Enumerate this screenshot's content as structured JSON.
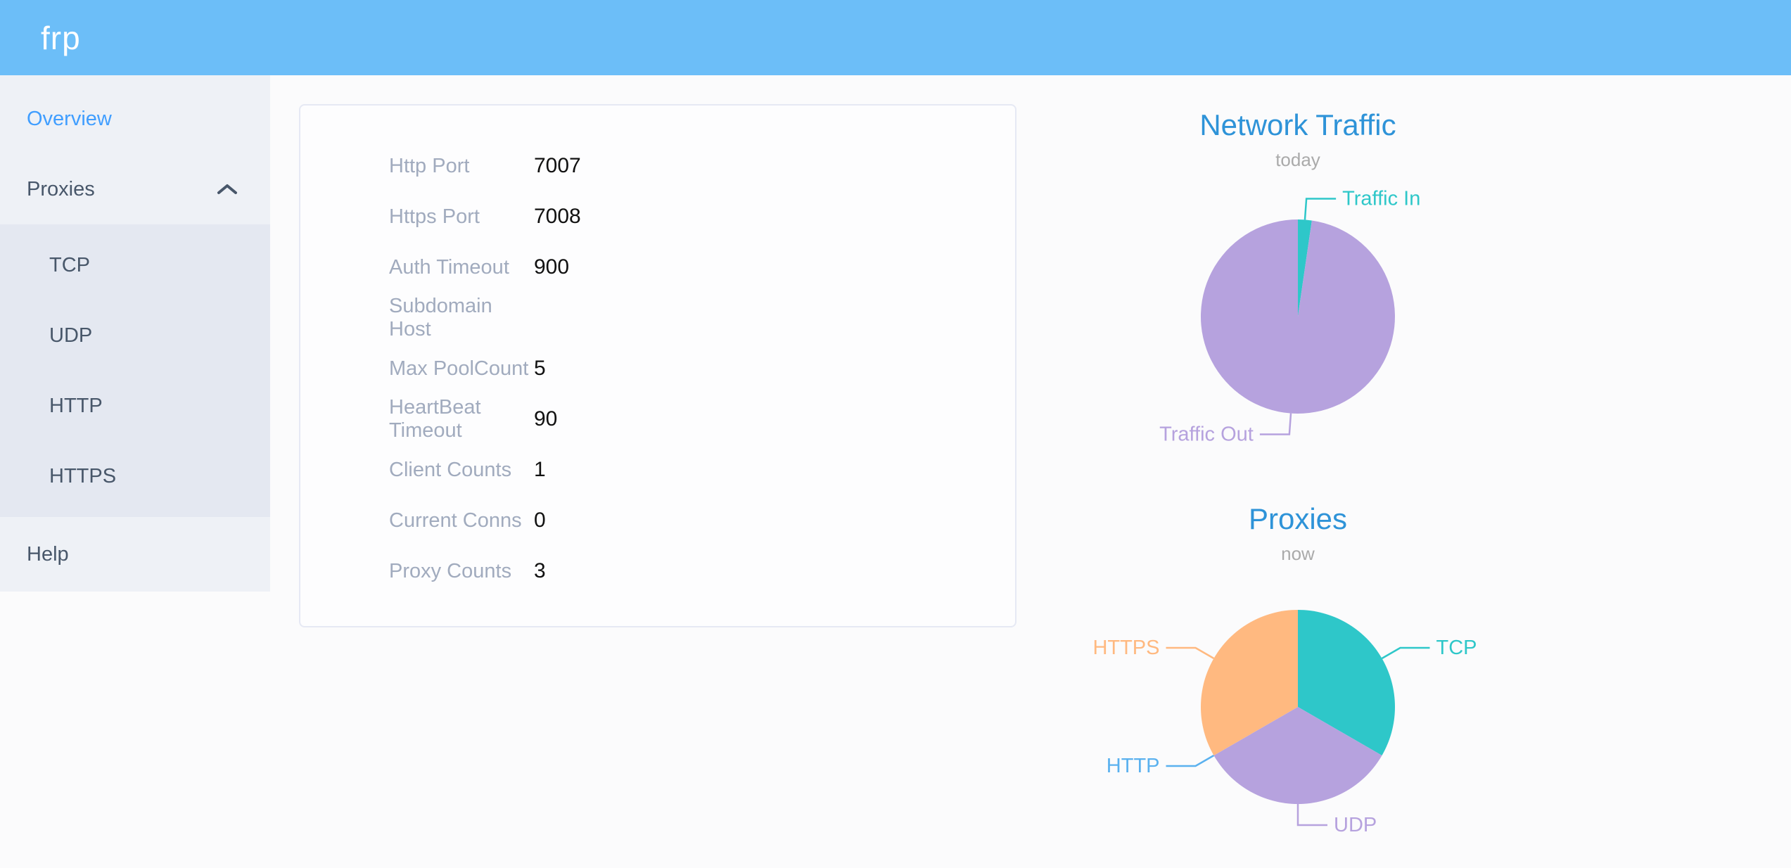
{
  "header": {
    "logo": "frp"
  },
  "theme": {
    "header_bg": "#6cbef8",
    "page_bg": "#fbfbfc",
    "sidebar_bg": "#eef1f6",
    "submenu_bg": "#e4e8f1",
    "menu_text": "#48576a",
    "active_menu": "#409eff",
    "label_text": "#a1abbe",
    "value_text": "#111111",
    "card_border": "#e6e9f4",
    "chart_title": "#2e93d8",
    "subtitle": "#aaaaaa"
  },
  "sidebar": {
    "items": [
      {
        "label": "Overview",
        "active": true
      },
      {
        "label": "Proxies",
        "expanded": true,
        "children": [
          "TCP",
          "UDP",
          "HTTP",
          "HTTPS"
        ]
      },
      {
        "label": "Help",
        "active": false
      }
    ]
  },
  "overview": {
    "rows": [
      {
        "label": "Http Port",
        "value": "7007"
      },
      {
        "label": "Https Port",
        "value": "7008"
      },
      {
        "label": "Auth Timeout",
        "value": "900"
      },
      {
        "label": "Subdomain Host",
        "value": ""
      },
      {
        "label": "Max PoolCount",
        "value": "5"
      },
      {
        "label": "HeartBeat Timeout",
        "value": "90"
      },
      {
        "label": "Client Counts",
        "value": "1"
      },
      {
        "label": "Current Conns",
        "value": "0"
      },
      {
        "label": "Proxy Counts",
        "value": "3"
      }
    ]
  },
  "chart_data": [
    {
      "type": "pie",
      "title": "Network Traffic",
      "subtitle": "today",
      "legend_position": "leader-labels",
      "slices": [
        {
          "label": "Traffic In",
          "value": 2.3,
          "color": "#2ec7c9"
        },
        {
          "label": "Traffic Out",
          "value": 97.7,
          "color": "#b6a2de"
        }
      ]
    },
    {
      "type": "pie",
      "title": "Proxies",
      "subtitle": "now",
      "legend_position": "leader-labels",
      "slices": [
        {
          "label": "TCP",
          "value": 1,
          "color": "#2ec7c9"
        },
        {
          "label": "UDP",
          "value": 1,
          "color": "#b6a2de"
        },
        {
          "label": "HTTP",
          "value": 0,
          "color": "#5ab1ef"
        },
        {
          "label": "HTTPS",
          "value": 1,
          "color": "#ffb980"
        }
      ]
    }
  ]
}
